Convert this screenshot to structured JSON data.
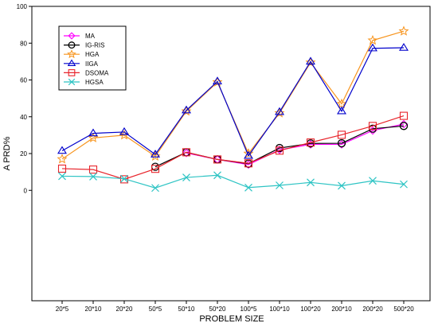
{
  "chart_data": {
    "type": "line",
    "title": "",
    "xlabel": "PROBLEM SIZE",
    "ylabel": "A PRD%",
    "categories": [
      "20*5",
      "20*10",
      "20*20",
      "50*5",
      "50*10",
      "50*20",
      "100*5",
      "100*10",
      "100*20",
      "200*10",
      "200*20",
      "500*20"
    ],
    "ylim": [
      -60,
      100
    ],
    "yticks": [
      0,
      20,
      40,
      60,
      80,
      100
    ],
    "grid": false,
    "legend_position": "top-left",
    "series": [
      {
        "name": "MA",
        "color": "#ff00ff",
        "marker": "diamond",
        "values": [
          null,
          null,
          null,
          null,
          20.3,
          16.8,
          14.0,
          22.0,
          25.0,
          25.0,
          32.5,
          36.0
        ]
      },
      {
        "name": "IG-RIS",
        "color": "#000000",
        "marker": "circle",
        "values": [
          null,
          null,
          null,
          12.8,
          20.7,
          16.8,
          14.5,
          23.0,
          25.5,
          25.6,
          33.5,
          35.0
        ]
      },
      {
        "name": "HGA",
        "color": "#f7941d",
        "marker": "star",
        "values": [
          17.0,
          28.5,
          30.0,
          18.5,
          43.0,
          58.8,
          20.0,
          42.0,
          69.5,
          47.0,
          81.5,
          86.5
        ]
      },
      {
        "name": "IIGA",
        "color": "#0000cc",
        "marker": "triangle",
        "values": [
          21.5,
          31.0,
          31.7,
          19.5,
          43.5,
          59.2,
          18.8,
          42.6,
          70.0,
          43.0,
          77.2,
          77.5
        ]
      },
      {
        "name": "DSOMA",
        "color": "#e8242b",
        "marker": "square",
        "values": [
          11.8,
          11.3,
          6.0,
          11.7,
          20.7,
          16.8,
          14.7,
          21.6,
          26.0,
          30.2,
          35.0,
          40.5
        ]
      },
      {
        "name": "HGSA",
        "color": "#2ec4c4",
        "marker": "x",
        "values": [
          7.7,
          7.5,
          6.3,
          1.3,
          7.0,
          8.2,
          1.5,
          2.7,
          4.3,
          2.5,
          5.2,
          3.3
        ]
      }
    ]
  }
}
